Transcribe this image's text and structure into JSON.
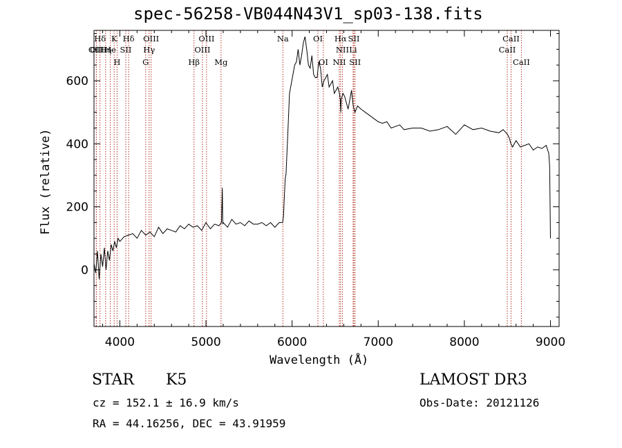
{
  "chart_data": {
    "type": "line",
    "title": "spec-56258-VB044N43V1_sp03-138.fits",
    "xlabel": "Wavelength (Å)",
    "ylabel": "Flux (relative)",
    "xlim": [
      3700,
      9100
    ],
    "ylim": [
      -180,
      760
    ],
    "xticks": [
      4000,
      5000,
      6000,
      7000,
      8000,
      9000
    ],
    "yticks": [
      0,
      200,
      400,
      600
    ],
    "grid": false,
    "series": [
      {
        "name": "flux",
        "x": [
          3700,
          3720,
          3740,
          3760,
          3780,
          3800,
          3820,
          3840,
          3860,
          3880,
          3900,
          3920,
          3940,
          3960,
          3980,
          4000,
          4050,
          4100,
          4150,
          4200,
          4250,
          4300,
          4350,
          4400,
          4450,
          4500,
          4550,
          4600,
          4650,
          4700,
          4750,
          4800,
          4850,
          4900,
          4950,
          5000,
          5050,
          5100,
          5150,
          5180,
          5190,
          5195,
          5200,
          5250,
          5300,
          5350,
          5400,
          5450,
          5500,
          5550,
          5600,
          5650,
          5700,
          5750,
          5800,
          5850,
          5880,
          5890,
          5900,
          5910,
          5920,
          5930,
          5950,
          5970,
          5990,
          6010,
          6030,
          6050,
          6070,
          6090,
          6110,
          6130,
          6150,
          6170,
          6190,
          6210,
          6230,
          6250,
          6270,
          6290,
          6310,
          6330,
          6350,
          6370,
          6390,
          6410,
          6430,
          6450,
          6470,
          6490,
          6510,
          6530,
          6550,
          6560,
          6565,
          6570,
          6590,
          6610,
          6630,
          6650,
          6670,
          6690,
          6710,
          6730,
          6760,
          6800,
          6850,
          6900,
          6950,
          7000,
          7050,
          7100,
          7150,
          7200,
          7250,
          7300,
          7400,
          7500,
          7600,
          7700,
          7800,
          7900,
          8000,
          8100,
          8200,
          8300,
          8400,
          8450,
          8500,
          8520,
          8540,
          8560,
          8600,
          8650,
          8700,
          8750,
          8800,
          8850,
          8900,
          8950,
          8980,
          8990,
          9000
        ],
        "values": [
          20,
          -10,
          60,
          -30,
          50,
          10,
          70,
          0,
          60,
          30,
          80,
          60,
          90,
          70,
          100,
          90,
          105,
          110,
          115,
          100,
          125,
          110,
          120,
          105,
          135,
          115,
          130,
          125,
          120,
          140,
          130,
          145,
          135,
          140,
          125,
          150,
          130,
          145,
          140,
          150,
          260,
          145,
          150,
          135,
          160,
          145,
          150,
          140,
          155,
          145,
          145,
          150,
          140,
          150,
          135,
          150,
          150,
          150,
          170,
          230,
          290,
          305,
          430,
          560,
          590,
          620,
          650,
          660,
          700,
          650,
          680,
          720,
          740,
          700,
          650,
          640,
          680,
          620,
          610,
          610,
          660,
          640,
          580,
          600,
          610,
          620,
          580,
          590,
          600,
          560,
          570,
          580,
          560,
          540,
          500,
          540,
          560,
          550,
          530,
          510,
          540,
          570,
          520,
          500,
          520,
          510,
          500,
          490,
          480,
          470,
          465,
          470,
          450,
          455,
          460,
          445,
          450,
          450,
          440,
          445,
          455,
          430,
          460,
          445,
          450,
          440,
          435,
          445,
          430,
          420,
          400,
          390,
          410,
          390,
          395,
          400,
          380,
          390,
          385,
          395,
          370,
          330,
          100
        ]
      }
    ],
    "emission_lines": [
      {
        "label": "Hδ",
        "x": 3770
      },
      {
        "label": "K",
        "x": 3934
      },
      {
        "label": "Hδ",
        "x": 4102
      },
      {
        "label": "OIII",
        "x": 4363
      },
      {
        "label": "OIII",
        "x": 5007
      },
      {
        "label": "Na",
        "x": 5893
      },
      {
        "label": "OI",
        "x": 6300
      },
      {
        "label": "Hα",
        "x": 6563
      },
      {
        "label": "SII",
        "x": 6717
      },
      {
        "label": "CaII",
        "x": 8542
      },
      {
        "label": "OII",
        "x": 3727
      },
      {
        "label": "He",
        "x": 3889
      },
      {
        "label": "SII",
        "x": 4069
      },
      {
        "label": "Hγ",
        "x": 4340
      },
      {
        "label": "OIII",
        "x": 4959
      },
      {
        "label": "NII",
        "x": 6584
      },
      {
        "label": "Li",
        "x": 6708
      },
      {
        "label": "CaII",
        "x": 8498
      },
      {
        "label": "OIII",
        "x": 3727
      },
      {
        "label": "Hη",
        "x": 3835
      },
      {
        "label": "H",
        "x": 3968
      },
      {
        "label": "G",
        "x": 4300
      },
      {
        "label": "Hβ",
        "x": 4861
      },
      {
        "label": "Mg",
        "x": 5175
      },
      {
        "label": "OI",
        "x": 6363
      },
      {
        "label": "NII",
        "x": 6548
      },
      {
        "label": "SII",
        "x": 6731
      },
      {
        "label": "CaII",
        "x": 8662
      }
    ],
    "line_color": "#000000",
    "marker_color": "#b03020"
  },
  "info": {
    "object_class": "STAR",
    "subclass": "K5",
    "survey": "LAMOST DR3",
    "cz": "cz = 152.1 ± 16.9 km/s",
    "obs_date": "Obs-Date: 20121126",
    "coords": "RA =  44.16256, DEC =  43.91959"
  }
}
